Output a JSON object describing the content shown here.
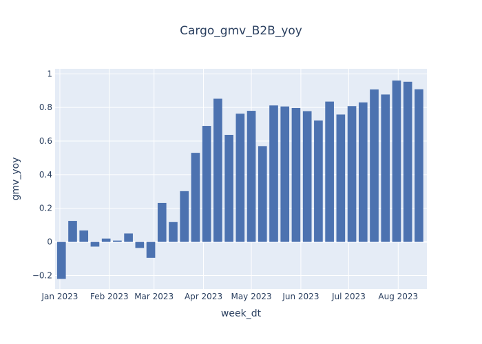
{
  "chart_data": {
    "type": "bar",
    "title": "Cargo_gmv_B2B_yoy",
    "xlabel": "week_dt",
    "ylabel": "gmv_yoy",
    "ylim": [
      -0.28,
      1.03
    ],
    "xlim": [
      "2022-12-29",
      "2023-08-19"
    ],
    "yticks": [
      -0.2,
      0,
      0.2,
      0.4,
      0.6,
      0.8,
      1
    ],
    "ytick_labels": [
      "−0.2",
      "0",
      "0.2",
      "0.4",
      "0.6",
      "0.8",
      "1"
    ],
    "xticks": [
      "2023-01-01",
      "2023-02-01",
      "2023-03-01",
      "2023-04-01",
      "2023-05-01",
      "2023-06-01",
      "2023-07-01",
      "2023-08-01"
    ],
    "xtick_labels": [
      "Jan 2023",
      "Feb 2023",
      "Mar 2023",
      "Apr 2023",
      "May 2023",
      "Jun 2023",
      "Jul 2023",
      "Aug 2023"
    ],
    "x": [
      "2023-01-02",
      "2023-01-09",
      "2023-01-16",
      "2023-01-23",
      "2023-01-30",
      "2023-02-06",
      "2023-02-13",
      "2023-02-20",
      "2023-02-27",
      "2023-03-06",
      "2023-03-13",
      "2023-03-20",
      "2023-03-27",
      "2023-04-03",
      "2023-04-10",
      "2023-04-17",
      "2023-04-24",
      "2023-05-01",
      "2023-05-08",
      "2023-05-15",
      "2023-05-22",
      "2023-05-29",
      "2023-06-05",
      "2023-06-12",
      "2023-06-19",
      "2023-06-26",
      "2023-07-03",
      "2023-07-10",
      "2023-07-17",
      "2023-07-24",
      "2023-07-31",
      "2023-08-07",
      "2023-08-14"
    ],
    "values": [
      -0.22,
      0.125,
      0.068,
      -0.028,
      0.02,
      0.008,
      0.05,
      -0.036,
      -0.095,
      0.232,
      0.118,
      0.302,
      0.53,
      0.69,
      0.852,
      0.637,
      0.763,
      0.78,
      0.57,
      0.812,
      0.806,
      0.797,
      0.778,
      0.722,
      0.835,
      0.758,
      0.808,
      0.83,
      0.907,
      0.877,
      0.96,
      0.953,
      0.908
    ],
    "bar_color": "#4c72b0",
    "plot_bg": "#e5ecf6",
    "grid": true
  }
}
